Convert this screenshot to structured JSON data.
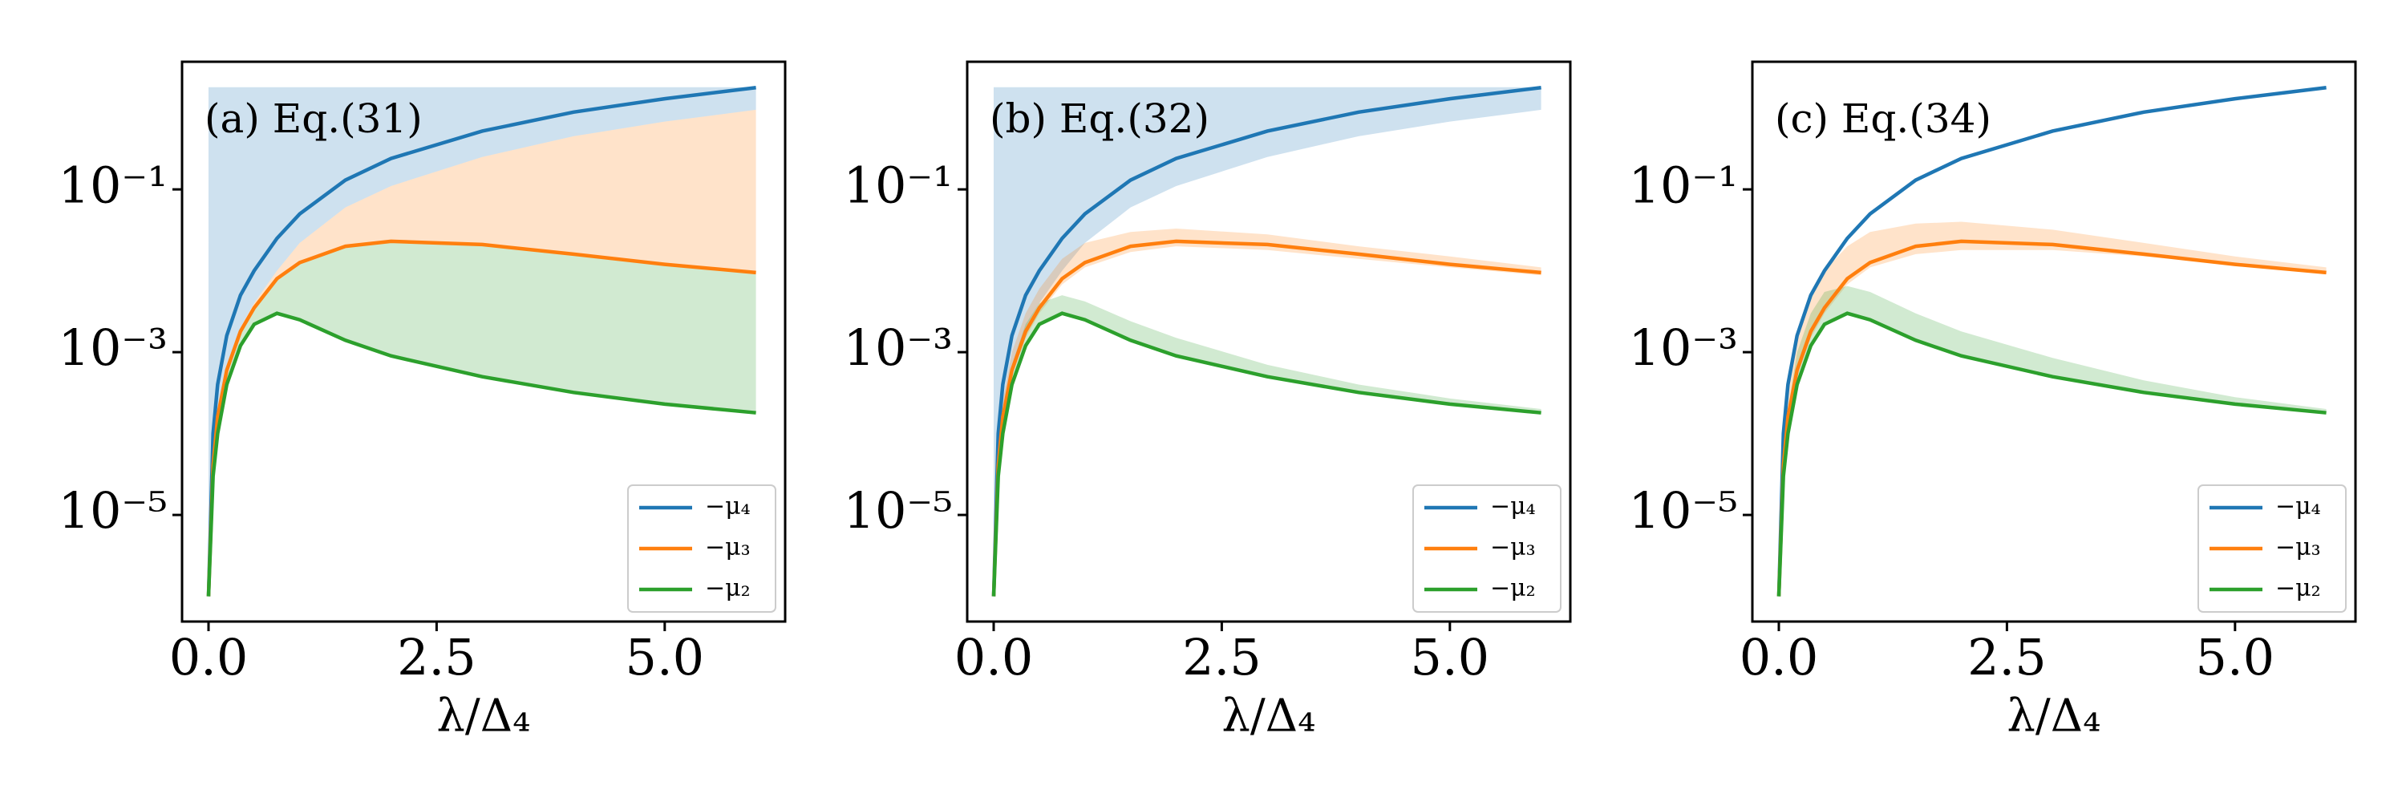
{
  "chart_data": [
    {
      "type": "line",
      "annotation": "(a) Eq.(31)",
      "x_label": "λ/Δ₄",
      "yscale": "log",
      "legend": "lower right",
      "xlim": [
        -0.29,
        6.32
      ],
      "ylim": [
        4.9e-07,
        3.7
      ],
      "xticks": [
        {
          "value": 0,
          "label": "0.0"
        },
        2.5,
        {
          "value": 5,
          "label": "5.0"
        }
      ],
      "yticks": [
        {
          "value": 1e-05,
          "label": "10⁻⁵"
        },
        {
          "value": 0.001,
          "label": "10⁻³"
        },
        {
          "value": 0.1,
          "label": "10⁻¹"
        }
      ],
      "x": [
        0,
        0.05,
        0.1,
        0.2,
        0.35,
        0.5,
        0.75,
        1,
        1.5,
        2,
        3,
        4,
        5,
        6
      ],
      "series": [
        {
          "name": "−μ₄",
          "color": "#1f77b4",
          "values": [
            1e-06,
            0.0001,
            0.0004,
            0.0016,
            0.005,
            0.01,
            0.025,
            0.05,
            0.13,
            0.24,
            0.52,
            0.89,
            1.3,
            1.78
          ],
          "lower": [
            1e-06,
            5e-05,
            0.0002,
            0.0007,
            0.002,
            0.004,
            0.01,
            0.022,
            0.06,
            0.11,
            0.25,
            0.45,
            0.68,
            0.95
          ],
          "upper": [
            1.8,
            1.8,
            1.8,
            1.8,
            1.8,
            1.8,
            1.8,
            1.8,
            1.8,
            1.8,
            1.8,
            1.8,
            1.8,
            1.8
          ]
        },
        {
          "name": "−μ₃",
          "color": "#ff7f0e",
          "values": [
            1e-06,
            4e-05,
            0.00016,
            0.0006,
            0.0018,
            0.0035,
            0.008,
            0.0126,
            0.02,
            0.023,
            0.021,
            0.016,
            0.012,
            0.0095
          ],
          "lower": [
            1e-06,
            4e-05,
            0.00016,
            0.0006,
            0.0018,
            0.0035,
            0.008,
            0.0126,
            0.02,
            0.023,
            0.021,
            0.016,
            0.012,
            0.0095
          ],
          "upper": [
            1e-06,
            5e-05,
            0.0002,
            0.0007,
            0.002,
            0.004,
            0.01,
            0.022,
            0.06,
            0.11,
            0.25,
            0.45,
            0.68,
            0.95
          ]
        },
        {
          "name": "−μ₂",
          "color": "#2ca02c",
          "values": [
            1e-06,
            3e-05,
            0.0001,
            0.0004,
            0.0012,
            0.0022,
            0.003,
            0.0025,
            0.0014,
            0.0009,
            0.0005,
            0.00032,
            0.00023,
            0.00018
          ],
          "lower": [
            1e-06,
            3e-05,
            0.0001,
            0.0004,
            0.0012,
            0.0022,
            0.003,
            0.0025,
            0.0014,
            0.0009,
            0.0005,
            0.00032,
            0.00023,
            0.00018
          ],
          "upper": [
            1e-06,
            4e-05,
            0.00016,
            0.0006,
            0.0018,
            0.0035,
            0.008,
            0.0126,
            0.02,
            0.023,
            0.021,
            0.016,
            0.012,
            0.0095
          ]
        }
      ]
    },
    {
      "type": "line",
      "annotation": "(b) Eq.(32)",
      "x_label": "λ/Δ₄",
      "yscale": "log",
      "legend": "lower right",
      "xlim": [
        -0.29,
        6.32
      ],
      "ylim": [
        4.9e-07,
        3.7
      ],
      "xticks": [
        {
          "value": 0,
          "label": "0.0"
        },
        2.5,
        {
          "value": 5,
          "label": "5.0"
        }
      ],
      "yticks": [
        {
          "value": 1e-05,
          "label": "10⁻⁵"
        },
        {
          "value": 0.001,
          "label": "10⁻³"
        },
        {
          "value": 0.1,
          "label": "10⁻¹"
        }
      ],
      "x": [
        0,
        0.05,
        0.1,
        0.2,
        0.35,
        0.5,
        0.75,
        1,
        1.5,
        2,
        3,
        4,
        5,
        6
      ],
      "series": [
        {
          "name": "−μ₄",
          "color": "#1f77b4",
          "values": [
            1e-06,
            0.0001,
            0.0004,
            0.0016,
            0.005,
            0.01,
            0.025,
            0.05,
            0.13,
            0.24,
            0.52,
            0.89,
            1.3,
            1.78
          ],
          "lower": [
            1e-06,
            5e-05,
            0.0002,
            0.0007,
            0.002,
            0.004,
            0.01,
            0.022,
            0.06,
            0.11,
            0.25,
            0.45,
            0.68,
            0.95
          ],
          "upper": [
            1.8,
            1.8,
            1.8,
            1.8,
            1.8,
            1.8,
            1.8,
            1.8,
            1.8,
            1.8,
            1.8,
            1.8,
            1.8,
            1.8
          ]
        },
        {
          "name": "−μ₃",
          "color": "#ff7f0e",
          "values": [
            1e-06,
            4e-05,
            0.00016,
            0.0006,
            0.0018,
            0.0035,
            0.008,
            0.0126,
            0.02,
            0.023,
            0.021,
            0.016,
            0.012,
            0.0095
          ],
          "lower": [
            1e-06,
            3.4e-05,
            0.00014,
            0.0005,
            0.0015,
            0.003,
            0.0068,
            0.011,
            0.017,
            0.02,
            0.018,
            0.014,
            0.011,
            0.0088
          ],
          "upper": [
            1e-06,
            6e-05,
            0.00025,
            0.001,
            0.003,
            0.006,
            0.014,
            0.022,
            0.03,
            0.033,
            0.028,
            0.02,
            0.015,
            0.011
          ]
        },
        {
          "name": "−μ₂",
          "color": "#2ca02c",
          "values": [
            1e-06,
            3e-05,
            0.0001,
            0.0004,
            0.0012,
            0.0022,
            0.003,
            0.0025,
            0.0014,
            0.0009,
            0.0005,
            0.00032,
            0.00023,
            0.00018
          ],
          "lower": [
            1e-06,
            3e-05,
            0.0001,
            0.0004,
            0.0012,
            0.0022,
            0.003,
            0.0025,
            0.0014,
            0.0009,
            0.0005,
            0.00032,
            0.00023,
            0.00018
          ],
          "upper": [
            1e-06,
            4e-05,
            0.00015,
            0.0007,
            0.0022,
            0.004,
            0.005,
            0.0042,
            0.0024,
            0.0015,
            0.0007,
            0.0004,
            0.00027,
            0.0002
          ]
        }
      ]
    },
    {
      "type": "line",
      "annotation": "(c) Eq.(34)",
      "x_label": "λ/Δ₄",
      "yscale": "log",
      "legend": "lower right",
      "xlim": [
        -0.29,
        6.32
      ],
      "ylim": [
        4.9e-07,
        3.7
      ],
      "xticks": [
        {
          "value": 0,
          "label": "0.0"
        },
        2.5,
        {
          "value": 5,
          "label": "5.0"
        }
      ],
      "yticks": [
        {
          "value": 1e-05,
          "label": "10⁻⁵"
        },
        {
          "value": 0.001,
          "label": "10⁻³"
        },
        {
          "value": 0.1,
          "label": "10⁻¹"
        }
      ],
      "x": [
        0,
        0.05,
        0.1,
        0.2,
        0.35,
        0.5,
        0.75,
        1,
        1.5,
        2,
        3,
        4,
        5,
        6
      ],
      "series": [
        {
          "name": "−μ₄",
          "color": "#1f77b4",
          "values": [
            1e-06,
            0.0001,
            0.0004,
            0.0016,
            0.005,
            0.01,
            0.025,
            0.05,
            0.13,
            0.24,
            0.52,
            0.89,
            1.3,
            1.78
          ]
        },
        {
          "name": "−μ₃",
          "color": "#ff7f0e",
          "values": [
            1e-06,
            4e-05,
            0.00016,
            0.0006,
            0.0018,
            0.0035,
            0.008,
            0.0126,
            0.02,
            0.023,
            0.021,
            0.016,
            0.012,
            0.0095
          ],
          "lower": [
            1e-06,
            3.4e-05,
            0.00014,
            0.0005,
            0.0015,
            0.003,
            0.0068,
            0.011,
            0.016,
            0.018,
            0.018,
            0.015,
            0.012,
            0.0093
          ],
          "upper": [
            1e-06,
            8e-05,
            0.0004,
            0.0016,
            0.005,
            0.01,
            0.02,
            0.03,
            0.038,
            0.04,
            0.032,
            0.022,
            0.015,
            0.011
          ]
        },
        {
          "name": "−μ₂",
          "color": "#2ca02c",
          "values": [
            1e-06,
            3e-05,
            0.0001,
            0.0004,
            0.0012,
            0.0022,
            0.003,
            0.0025,
            0.0014,
            0.0009,
            0.0005,
            0.00032,
            0.00023,
            0.00018
          ],
          "lower": [
            1e-06,
            3e-05,
            0.0001,
            0.0004,
            0.0012,
            0.0022,
            0.003,
            0.0025,
            0.0014,
            0.0009,
            0.0005,
            0.00032,
            0.00023,
            0.00018
          ],
          "upper": [
            1e-06,
            5e-05,
            0.0002,
            0.001,
            0.003,
            0.0055,
            0.0065,
            0.0055,
            0.003,
            0.0018,
            0.00085,
            0.00045,
            0.00028,
            0.0002
          ]
        }
      ]
    }
  ]
}
